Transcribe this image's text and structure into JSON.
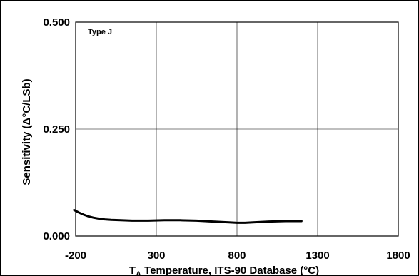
{
  "chart_data": {
    "type": "line",
    "title": "",
    "xlabel_prefix": "T",
    "xlabel_subscript": "A",
    "xlabel_rest": " Temperature, ITS-90 Database (°C)",
    "ylabel": "Sensitivity (Δ°C/LSb)",
    "annotation": "Type J",
    "xlim": [
      -200,
      1800
    ],
    "ylim": [
      0,
      0.5
    ],
    "x_ticks": [
      -200,
      300,
      800,
      1300,
      1800
    ],
    "y_ticks": [
      0,
      0.25,
      0.5
    ],
    "x_tick_labels": [
      "-200",
      "300",
      "800",
      "1300",
      "1800"
    ],
    "y_tick_labels": [
      "0.000",
      "0.250",
      "0.500"
    ],
    "grid": true,
    "series": [
      {
        "color": "#000000",
        "x": [
          -210,
          -180,
          -150,
          -120,
          -90,
          -60,
          -20,
          20,
          80,
          150,
          250,
          350,
          450,
          550,
          650,
          750,
          800,
          850,
          900,
          1000,
          1100,
          1200
        ],
        "y": [
          0.061,
          0.055,
          0.05,
          0.046,
          0.043,
          0.041,
          0.039,
          0.038,
          0.037,
          0.036,
          0.036,
          0.037,
          0.037,
          0.036,
          0.034,
          0.032,
          0.031,
          0.031,
          0.032,
          0.034,
          0.035,
          0.035
        ]
      }
    ]
  }
}
